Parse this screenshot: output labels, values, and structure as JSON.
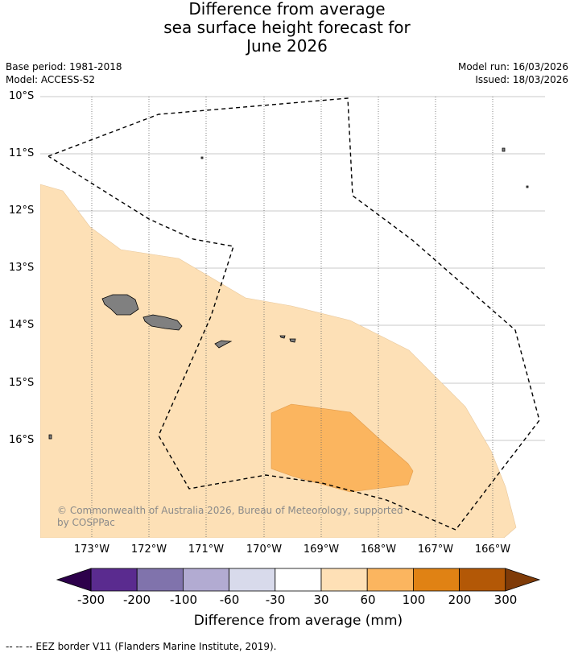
{
  "title": {
    "line1": "Difference from average",
    "line2": "sea surface height forecast for",
    "line3": "June 2026"
  },
  "meta": {
    "base_period": "Base period: 1981-2018",
    "model": "Model: ACCESS-S2",
    "model_run": "Model run: 16/03/2026",
    "issued": "Issued: 18/03/2026"
  },
  "map": {
    "lat_labels": [
      "10°S",
      "11°S",
      "12°S",
      "13°S",
      "14°S",
      "15°S",
      "16°S"
    ],
    "lon_labels": [
      "173°W",
      "172°W",
      "171°W",
      "170°W",
      "169°W",
      "168°W",
      "167°W",
      "166°W"
    ],
    "copyright_line1": "© Commonwealth of Australia 2026, Bureau of Meteorology, supported",
    "copyright_line2": "by COSPPac",
    "colors": {
      "land": "#808080",
      "band_30_60": "#fde0b6",
      "band_60_100": "#fbb55f"
    }
  },
  "colorbar": {
    "ticks": [
      "-300",
      "-200",
      "-100",
      "-60",
      "-30",
      "30",
      "60",
      "100",
      "200",
      "300"
    ],
    "colors": [
      "#5a2b8f",
      "#8073ac",
      "#b2abd2",
      "#d8daeb",
      "#ffffff",
      "#fee0b6",
      "#fbb55f",
      "#e08214",
      "#b35806"
    ],
    "low_extend_color": "#2d004b",
    "high_extend_color": "#7f3b08",
    "label": "Difference from average (mm)"
  },
  "footer": "-- -- -- EEZ border V11 (Flanders Marine Institute, 2019)."
}
